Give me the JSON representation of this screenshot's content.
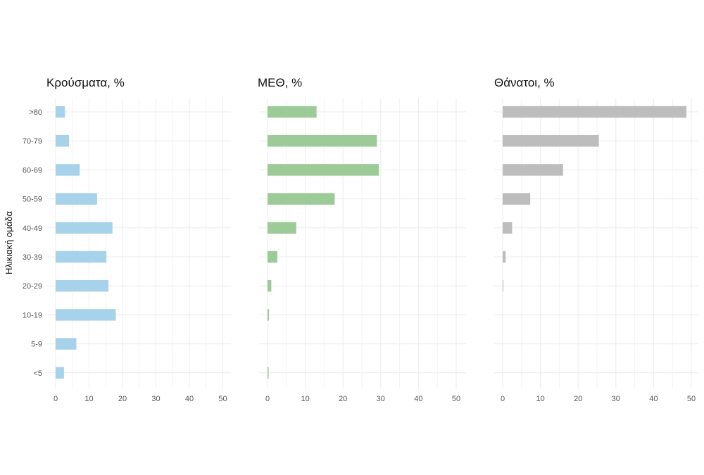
{
  "chart_data": {
    "type": "bar",
    "orientation": "horizontal",
    "categories": [
      ">80",
      "70-79",
      "60-69",
      "50-59",
      "40-49",
      "30-39",
      "20-29",
      "10-19",
      "5-9",
      "<5"
    ],
    "ylabel": "Ηλικιακή ομάδα",
    "xlim": [
      0,
      50
    ],
    "xticks": [
      0,
      10,
      20,
      30,
      40,
      50
    ],
    "grid": true,
    "panels": [
      {
        "title": "Κρούσματα, %",
        "color": "#a6d3ea",
        "values": [
          2.8,
          4.0,
          7.2,
          12.4,
          17.0,
          15.2,
          15.8,
          18.0,
          6.2,
          2.5
        ]
      },
      {
        "title": "ΜΕΘ, %",
        "color": "#9ccb98",
        "values": [
          13.0,
          29.0,
          29.5,
          17.8,
          7.6,
          2.6,
          1.0,
          0.4,
          0.0,
          0.3
        ]
      },
      {
        "title": "Θάνατοι, %",
        "color": "#bdbdbd",
        "values": [
          48.7,
          25.5,
          16.0,
          7.3,
          2.5,
          0.8,
          0.2,
          0.0,
          0.0,
          0.0
        ]
      }
    ]
  }
}
